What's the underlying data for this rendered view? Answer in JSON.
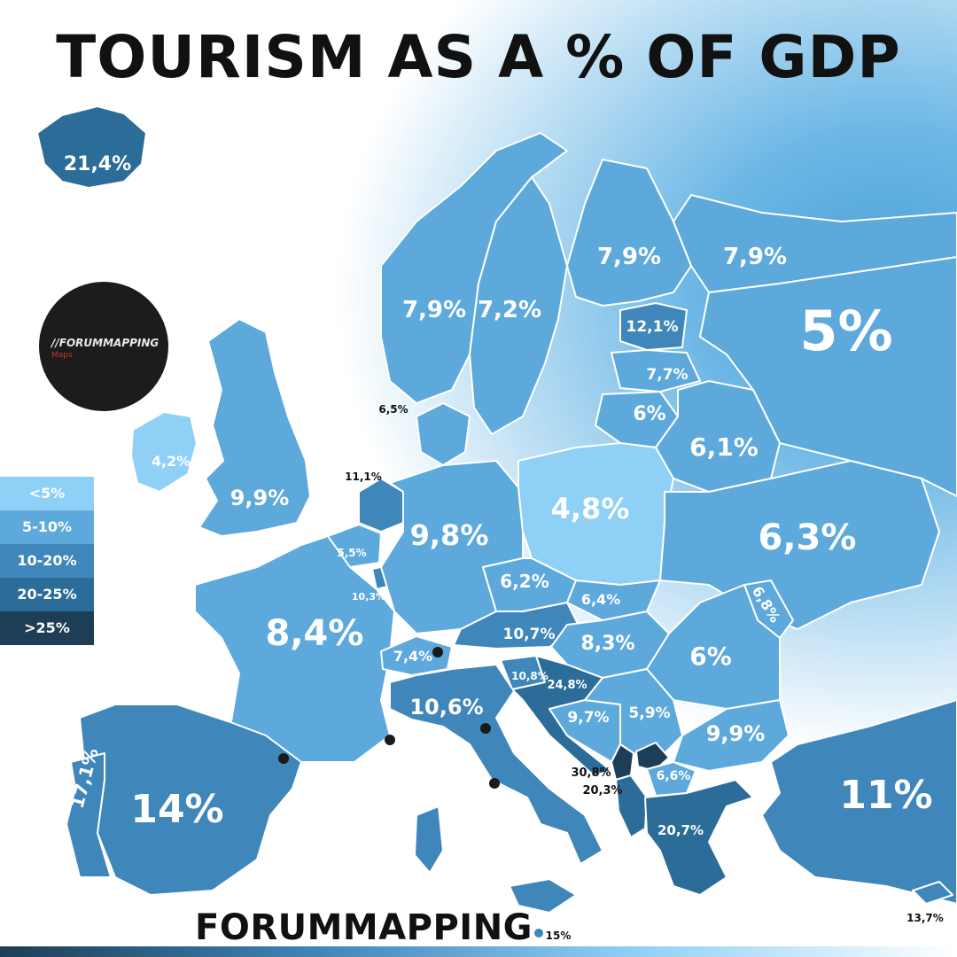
{
  "title": "TOURISM AS A % OF GDP",
  "brand": "FORUMMAPPING",
  "logo": {
    "text": "//FORUMMAPPING",
    "sub": "Maps"
  },
  "legend": [
    {
      "label": "<5%",
      "color": "#8fd0f6"
    },
    {
      "label": "5-10%",
      "color": "#5ea9dc"
    },
    {
      "label": "10-20%",
      "color": "#3f86bb"
    },
    {
      "label": "20-25%",
      "color": "#2c6c98"
    },
    {
      "label": ">25%",
      "color": "#1d3e56"
    }
  ],
  "values": {
    "iceland": "21,4%",
    "norway": "7,9%",
    "sweden": "7,2%",
    "finland": "7,9%",
    "russia_north": "7,9%",
    "russia": "5%",
    "estonia": "12,1%",
    "latvia": "7,7%",
    "lithuania": "6%",
    "belarus": "6,1%",
    "denmark": "6,5%",
    "ireland": "4,2%",
    "uk": "9,9%",
    "netherlands": "11,1%",
    "belgium": "5,5%",
    "luxembourg": "10,3%",
    "germany": "9,8%",
    "poland": "4,8%",
    "ukraine": "6,3%",
    "czechia": "6,2%",
    "slovakia": "6,4%",
    "moldova": "6,8%",
    "france": "8,4%",
    "austria": "10,7%",
    "hungary": "8,3%",
    "romania": "6%",
    "switzerland": "7,4%",
    "slovenia": "10,8%",
    "croatia": "24,8%",
    "bosnia": "9,7%",
    "serbia": "5,9%",
    "bulgaria": "9,9%",
    "italy": "10,6%",
    "montenegro": "30,8%",
    "albania": "20,3%",
    "north_macedonia": "6,6%",
    "greece": "20,7%",
    "turkey": "11%",
    "spain": "14%",
    "portugal": "17,1%",
    "cyprus": "13,7%",
    "malta": "15%"
  }
}
